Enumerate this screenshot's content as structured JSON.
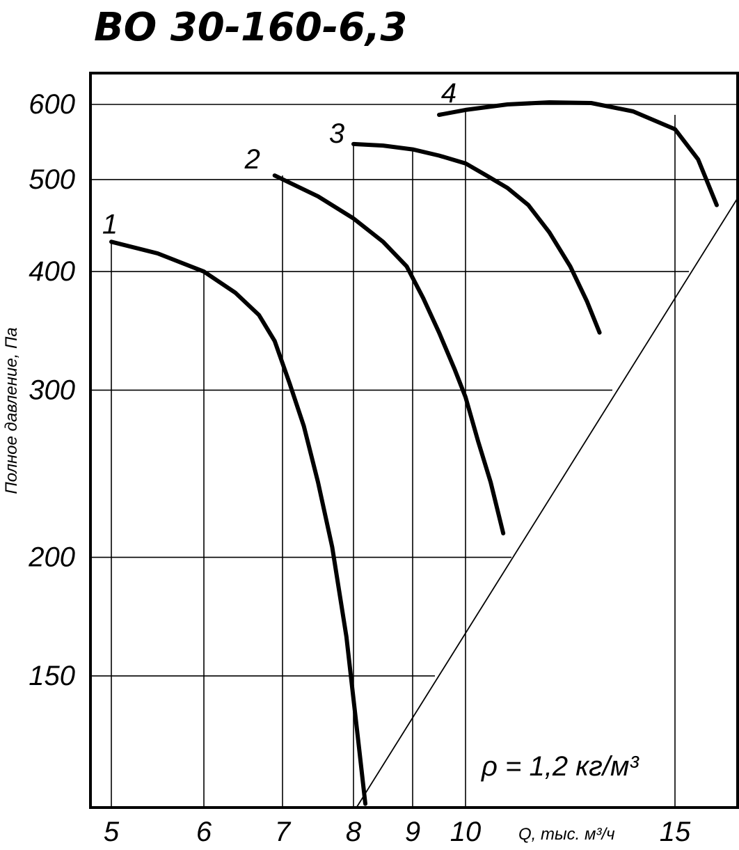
{
  "chart_data": {
    "type": "line",
    "title": "ВО 30-160-6,3",
    "xlabel": "Q, тыс. м³/ч",
    "ylabel": "Полное давление, Па",
    "x_ticks": [
      5,
      6,
      7,
      8,
      9,
      10,
      15
    ],
    "y_ticks": [
      600,
      500,
      400,
      300,
      200,
      150
    ],
    "xlim": [
      4.65,
      17.7
    ],
    "ylim": [
      107,
      640
    ],
    "y_scale": "log",
    "x_scale": "irregular",
    "grid": true,
    "annotation": "ρ = 1,2 кг/м³",
    "series": [
      {
        "name": "1",
        "x": [
          5.0,
          5.5,
          6.0,
          6.4,
          6.7,
          6.9,
          7.1,
          7.3,
          7.5,
          7.7,
          7.9,
          8.1,
          8.2
        ],
        "y": [
          430,
          418,
          400,
          380,
          360,
          338,
          305,
          275,
          240,
          205,
          165,
          125,
          110
        ]
      },
      {
        "name": "2",
        "x": [
          6.9,
          7.5,
          8.0,
          8.5,
          8.9,
          9.2,
          9.5,
          9.8,
          10.0,
          10.3,
          10.6,
          10.9
        ],
        "y": [
          505,
          480,
          455,
          430,
          405,
          375,
          345,
          315,
          295,
          265,
          240,
          212
        ]
      },
      {
        "name": "3",
        "x": [
          8.0,
          8.5,
          9.0,
          9.5,
          10.0,
          10.5,
          11.0,
          11.5,
          12.0,
          12.5,
          12.9,
          13.2
        ],
        "y": [
          545,
          543,
          538,
          530,
          520,
          505,
          490,
          470,
          440,
          405,
          372,
          345
        ]
      },
      {
        "name": "4",
        "x": [
          9.5,
          10.0,
          11.0,
          12.0,
          13.0,
          14.0,
          15.0,
          16.0,
          16.8
        ],
        "y": [
          585,
          592,
          600,
          603,
          602,
          590,
          565,
          525,
          470
        ]
      },
      {
        "name": "",
        "x": [
          8.05,
          17.7
        ],
        "y": [
          109,
          478
        ]
      }
    ]
  }
}
